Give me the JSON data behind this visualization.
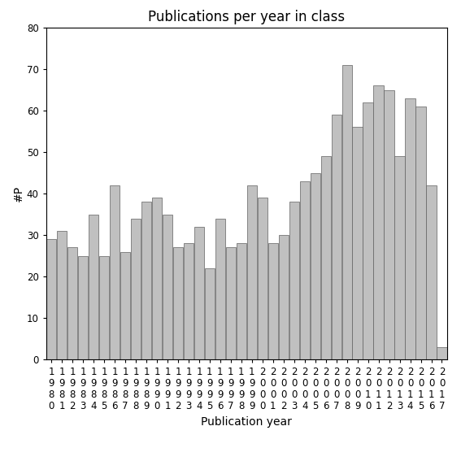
{
  "title": "Publications per year in class",
  "xlabel": "Publication year",
  "ylabel": "#P",
  "years": [
    "1980",
    "1981",
    "1982",
    "1983",
    "1984",
    "1985",
    "1986",
    "1987",
    "1988",
    "1989",
    "1990",
    "1991",
    "1992",
    "1993",
    "1994",
    "1995",
    "1996",
    "1997",
    "1998",
    "1999",
    "2000",
    "2001",
    "2002",
    "2003",
    "2004",
    "2005",
    "2006",
    "2007",
    "2008",
    "2009",
    "2010",
    "2011",
    "2012",
    "2013",
    "2014",
    "2015",
    "2016",
    "2017"
  ],
  "values": [
    29,
    31,
    27,
    25,
    35,
    25,
    42,
    26,
    34,
    38,
    39,
    35,
    27,
    28,
    32,
    22,
    34,
    27,
    28,
    42,
    39,
    28,
    30,
    38,
    43,
    45,
    49,
    59,
    71,
    56,
    62,
    66,
    65,
    49,
    63,
    61,
    42,
    3
  ],
  "bar_color": "#c0c0c0",
  "bar_edge_color": "#606060",
  "ylim": [
    0,
    80
  ],
  "yticks": [
    0,
    10,
    20,
    30,
    40,
    50,
    60,
    70,
    80
  ],
  "background_color": "#ffffff",
  "title_fontsize": 12,
  "label_fontsize": 10,
  "tick_fontsize": 8.5
}
